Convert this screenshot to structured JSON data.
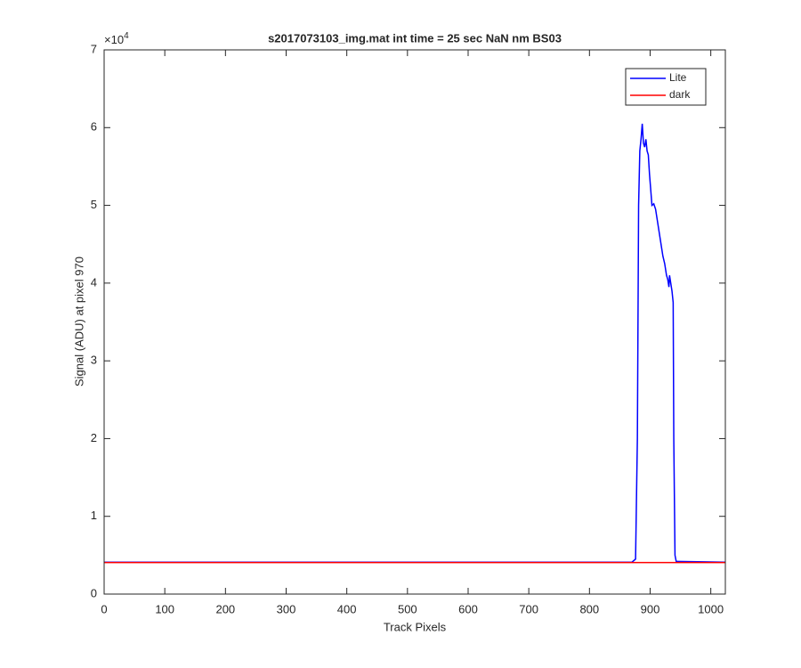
{
  "chart_data": {
    "type": "line",
    "title": "s2017073103_img.mat int time = 25 sec  NaN nm BS03",
    "x_label": "Track Pixels",
    "y_label": "Signal (ADU) at pixel 970",
    "y_exponent_base": "×10",
    "y_exponent_power": "4",
    "xlim": [
      0,
      1024
    ],
    "xticks": [
      0,
      100,
      200,
      300,
      400,
      500,
      600,
      700,
      800,
      900,
      1000
    ],
    "ylim": [
      0,
      70000
    ],
    "yticks": [
      {
        "value": 0,
        "label": "0"
      },
      {
        "value": 10000,
        "label": "1"
      },
      {
        "value": 20000,
        "label": "2"
      },
      {
        "value": 30000,
        "label": "3"
      },
      {
        "value": 40000,
        "label": "4"
      },
      {
        "value": 50000,
        "label": "5"
      },
      {
        "value": 60000,
        "label": "6"
      },
      {
        "value": 70000,
        "label": "7"
      }
    ],
    "grid": false,
    "legend_position": "upper-right",
    "series": [
      {
        "name": "Lite",
        "color": "#0000ff",
        "x": [
          0,
          870,
          876,
          879,
          881,
          883,
          885,
          887,
          889,
          891,
          893,
          895,
          897,
          899,
          901,
          903,
          906,
          909,
          912,
          915,
          918,
          921,
          924,
          927,
          929,
          931,
          932,
          934,
          936,
          938,
          939,
          941,
          943,
          1024
        ],
        "values": [
          4100,
          4100,
          4500,
          20000,
          50000,
          57000,
          58500,
          60500,
          58000,
          57500,
          58500,
          57000,
          56500,
          54000,
          52000,
          50000,
          50200,
          49500,
          48000,
          46500,
          45000,
          43500,
          42500,
          41000,
          40500,
          39500,
          41000,
          40000,
          39000,
          37500,
          20000,
          5000,
          4200,
          4100
        ]
      },
      {
        "name": "dark",
        "color": "#ff0000",
        "x": [
          0,
          1024
        ],
        "values": [
          4050,
          4050
        ]
      }
    ]
  }
}
